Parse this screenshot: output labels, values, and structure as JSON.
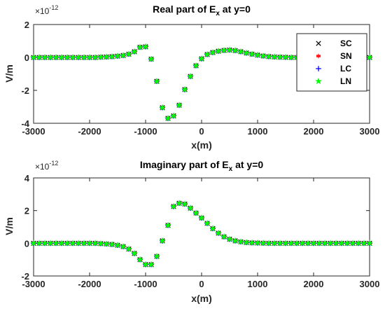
{
  "chart_data": [
    {
      "type": "scatter",
      "title": "Real part of E",
      "title_sub": "x",
      "title_suffix": " at y=0",
      "xlabel": "x(m)",
      "ylabel": "V/m",
      "y_exponent_base": "×10",
      "y_exponent_power": "-12",
      "xlim": [
        -3000,
        3000
      ],
      "ylim": [
        -4,
        2
      ],
      "xticks": [
        "-3000",
        "-2000",
        "-1000",
        "0",
        "1000",
        "2000",
        "3000"
      ],
      "yticks": [
        "2",
        "0",
        "-2",
        "-4"
      ],
      "grid": false,
      "legend_position": "top-right",
      "x": [
        -3000,
        -2900,
        -2800,
        -2700,
        -2600,
        -2500,
        -2400,
        -2300,
        -2200,
        -2100,
        -2000,
        -1900,
        -1800,
        -1700,
        -1600,
        -1500,
        -1400,
        -1300,
        -1200,
        -1100,
        -1000,
        -900,
        -800,
        -700,
        -600,
        -500,
        -400,
        -300,
        -200,
        -100,
        0,
        100,
        200,
        300,
        400,
        500,
        600,
        700,
        800,
        900,
        1000,
        1100,
        1200,
        1300,
        1400,
        1500,
        1600,
        1700,
        1800,
        1900,
        2000,
        2100,
        2200,
        2300,
        2400,
        2500,
        2600,
        2700,
        2800,
        2900,
        3000
      ],
      "y": [
        0,
        0,
        0,
        0,
        0,
        0,
        0,
        0,
        0,
        0,
        0,
        0,
        0.02,
        0.03,
        0.05,
        0.08,
        0.12,
        0.2,
        0.35,
        0.62,
        0.65,
        -0.1,
        -1.45,
        -3.05,
        -3.7,
        -3.55,
        -2.9,
        -1.95,
        -1.15,
        -0.5,
        -0.08,
        0.18,
        0.3,
        0.38,
        0.43,
        0.45,
        0.42,
        0.35,
        0.27,
        0.2,
        0.14,
        0.09,
        0.05,
        0.03,
        0.02,
        0.01,
        0,
        0,
        0,
        0,
        0,
        0,
        0,
        0,
        0,
        0,
        0,
        0,
        0,
        0,
        0
      ],
      "series": [
        {
          "name": "SC",
          "marker": "x",
          "color": "#000000"
        },
        {
          "name": "SN",
          "marker": "asterisk",
          "color": "#ff0000"
        },
        {
          "name": "LC",
          "marker": "plus",
          "color": "#0000ff"
        },
        {
          "name": "LN",
          "marker": "pentagram",
          "color": "#00ff00"
        }
      ]
    },
    {
      "type": "scatter",
      "title": "Imaginary part of E",
      "title_sub": "x",
      "title_suffix": " at y=0",
      "xlabel": "x(m)",
      "ylabel": "V/m",
      "y_exponent_base": "×10",
      "y_exponent_power": "-12",
      "xlim": [
        -3000,
        3000
      ],
      "ylim": [
        -2,
        4
      ],
      "xticks": [
        "-3000",
        "-2000",
        "-1000",
        "0",
        "1000",
        "2000",
        "3000"
      ],
      "yticks": [
        "4",
        "2",
        "0",
        "-2"
      ],
      "grid": false,
      "x": [
        -3000,
        -2900,
        -2800,
        -2700,
        -2600,
        -2500,
        -2400,
        -2300,
        -2200,
        -2100,
        -2000,
        -1900,
        -1800,
        -1700,
        -1600,
        -1500,
        -1400,
        -1300,
        -1200,
        -1100,
        -1000,
        -900,
        -800,
        -700,
        -600,
        -500,
        -400,
        -300,
        -200,
        -100,
        0,
        100,
        200,
        300,
        400,
        500,
        600,
        700,
        800,
        900,
        1000,
        1100,
        1200,
        1300,
        1400,
        1500,
        1600,
        1700,
        1800,
        1900,
        2000,
        2100,
        2200,
        2300,
        2400,
        2500,
        2600,
        2700,
        2800,
        2900,
        3000
      ],
      "y": [
        0,
        0,
        0,
        0,
        0,
        0,
        0,
        0,
        0,
        0,
        0,
        0,
        -0.02,
        -0.04,
        -0.07,
        -0.12,
        -0.2,
        -0.35,
        -0.62,
        -1.0,
        -1.3,
        -1.3,
        -0.8,
        0.15,
        1.1,
        2.25,
        2.45,
        2.4,
        2.15,
        1.85,
        1.55,
        1.22,
        0.9,
        0.62,
        0.4,
        0.25,
        0.15,
        0.09,
        0.05,
        0.03,
        0.02,
        0.01,
        0,
        0,
        0,
        0,
        0,
        0,
        0,
        0,
        0,
        0,
        0,
        0,
        0,
        0,
        0,
        0,
        0,
        0,
        0
      ],
      "series": [
        {
          "name": "SC",
          "marker": "x",
          "color": "#000000"
        },
        {
          "name": "SN",
          "marker": "asterisk",
          "color": "#ff0000"
        },
        {
          "name": "LC",
          "marker": "plus",
          "color": "#0000ff"
        },
        {
          "name": "LN",
          "marker": "pentagram",
          "color": "#00ff00"
        }
      ]
    }
  ]
}
